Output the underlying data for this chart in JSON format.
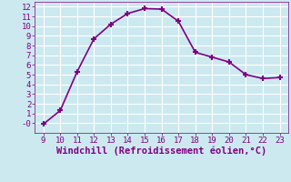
{
  "x": [
    9,
    10,
    11,
    12,
    13,
    14,
    15,
    16,
    17,
    18,
    19,
    20,
    21,
    22,
    23
  ],
  "y": [
    -0.1,
    1.3,
    5.3,
    8.7,
    10.2,
    11.3,
    11.8,
    11.75,
    10.5,
    7.3,
    6.8,
    6.3,
    5.0,
    4.6,
    4.7
  ],
  "line_color": "#800080",
  "marker": "+",
  "marker_size": 5,
  "marker_linewidth": 1.5,
  "xlabel": "Windchill (Refroidissement éolien,°C)",
  "xlabel_color": "#800080",
  "xlim": [
    8.5,
    23.5
  ],
  "ylim": [
    -1.0,
    12.5
  ],
  "xticks": [
    9,
    10,
    11,
    12,
    13,
    14,
    15,
    16,
    17,
    18,
    19,
    20,
    21,
    22,
    23
  ],
  "yticks": [
    0,
    1,
    2,
    3,
    4,
    5,
    6,
    7,
    8,
    9,
    10,
    11,
    12
  ],
  "ytick_labels": [
    "-0",
    "1",
    "2",
    "3",
    "4",
    "5",
    "6",
    "7",
    "8",
    "9",
    "10",
    "11",
    "12"
  ],
  "background_color": "#cce9f0",
  "grid_color": "#ffffff",
  "tick_color": "#800080",
  "tick_label_color": "#800080",
  "tick_fontsize": 6.5,
  "xlabel_fontsize": 7.5,
  "linewidth": 1.2
}
